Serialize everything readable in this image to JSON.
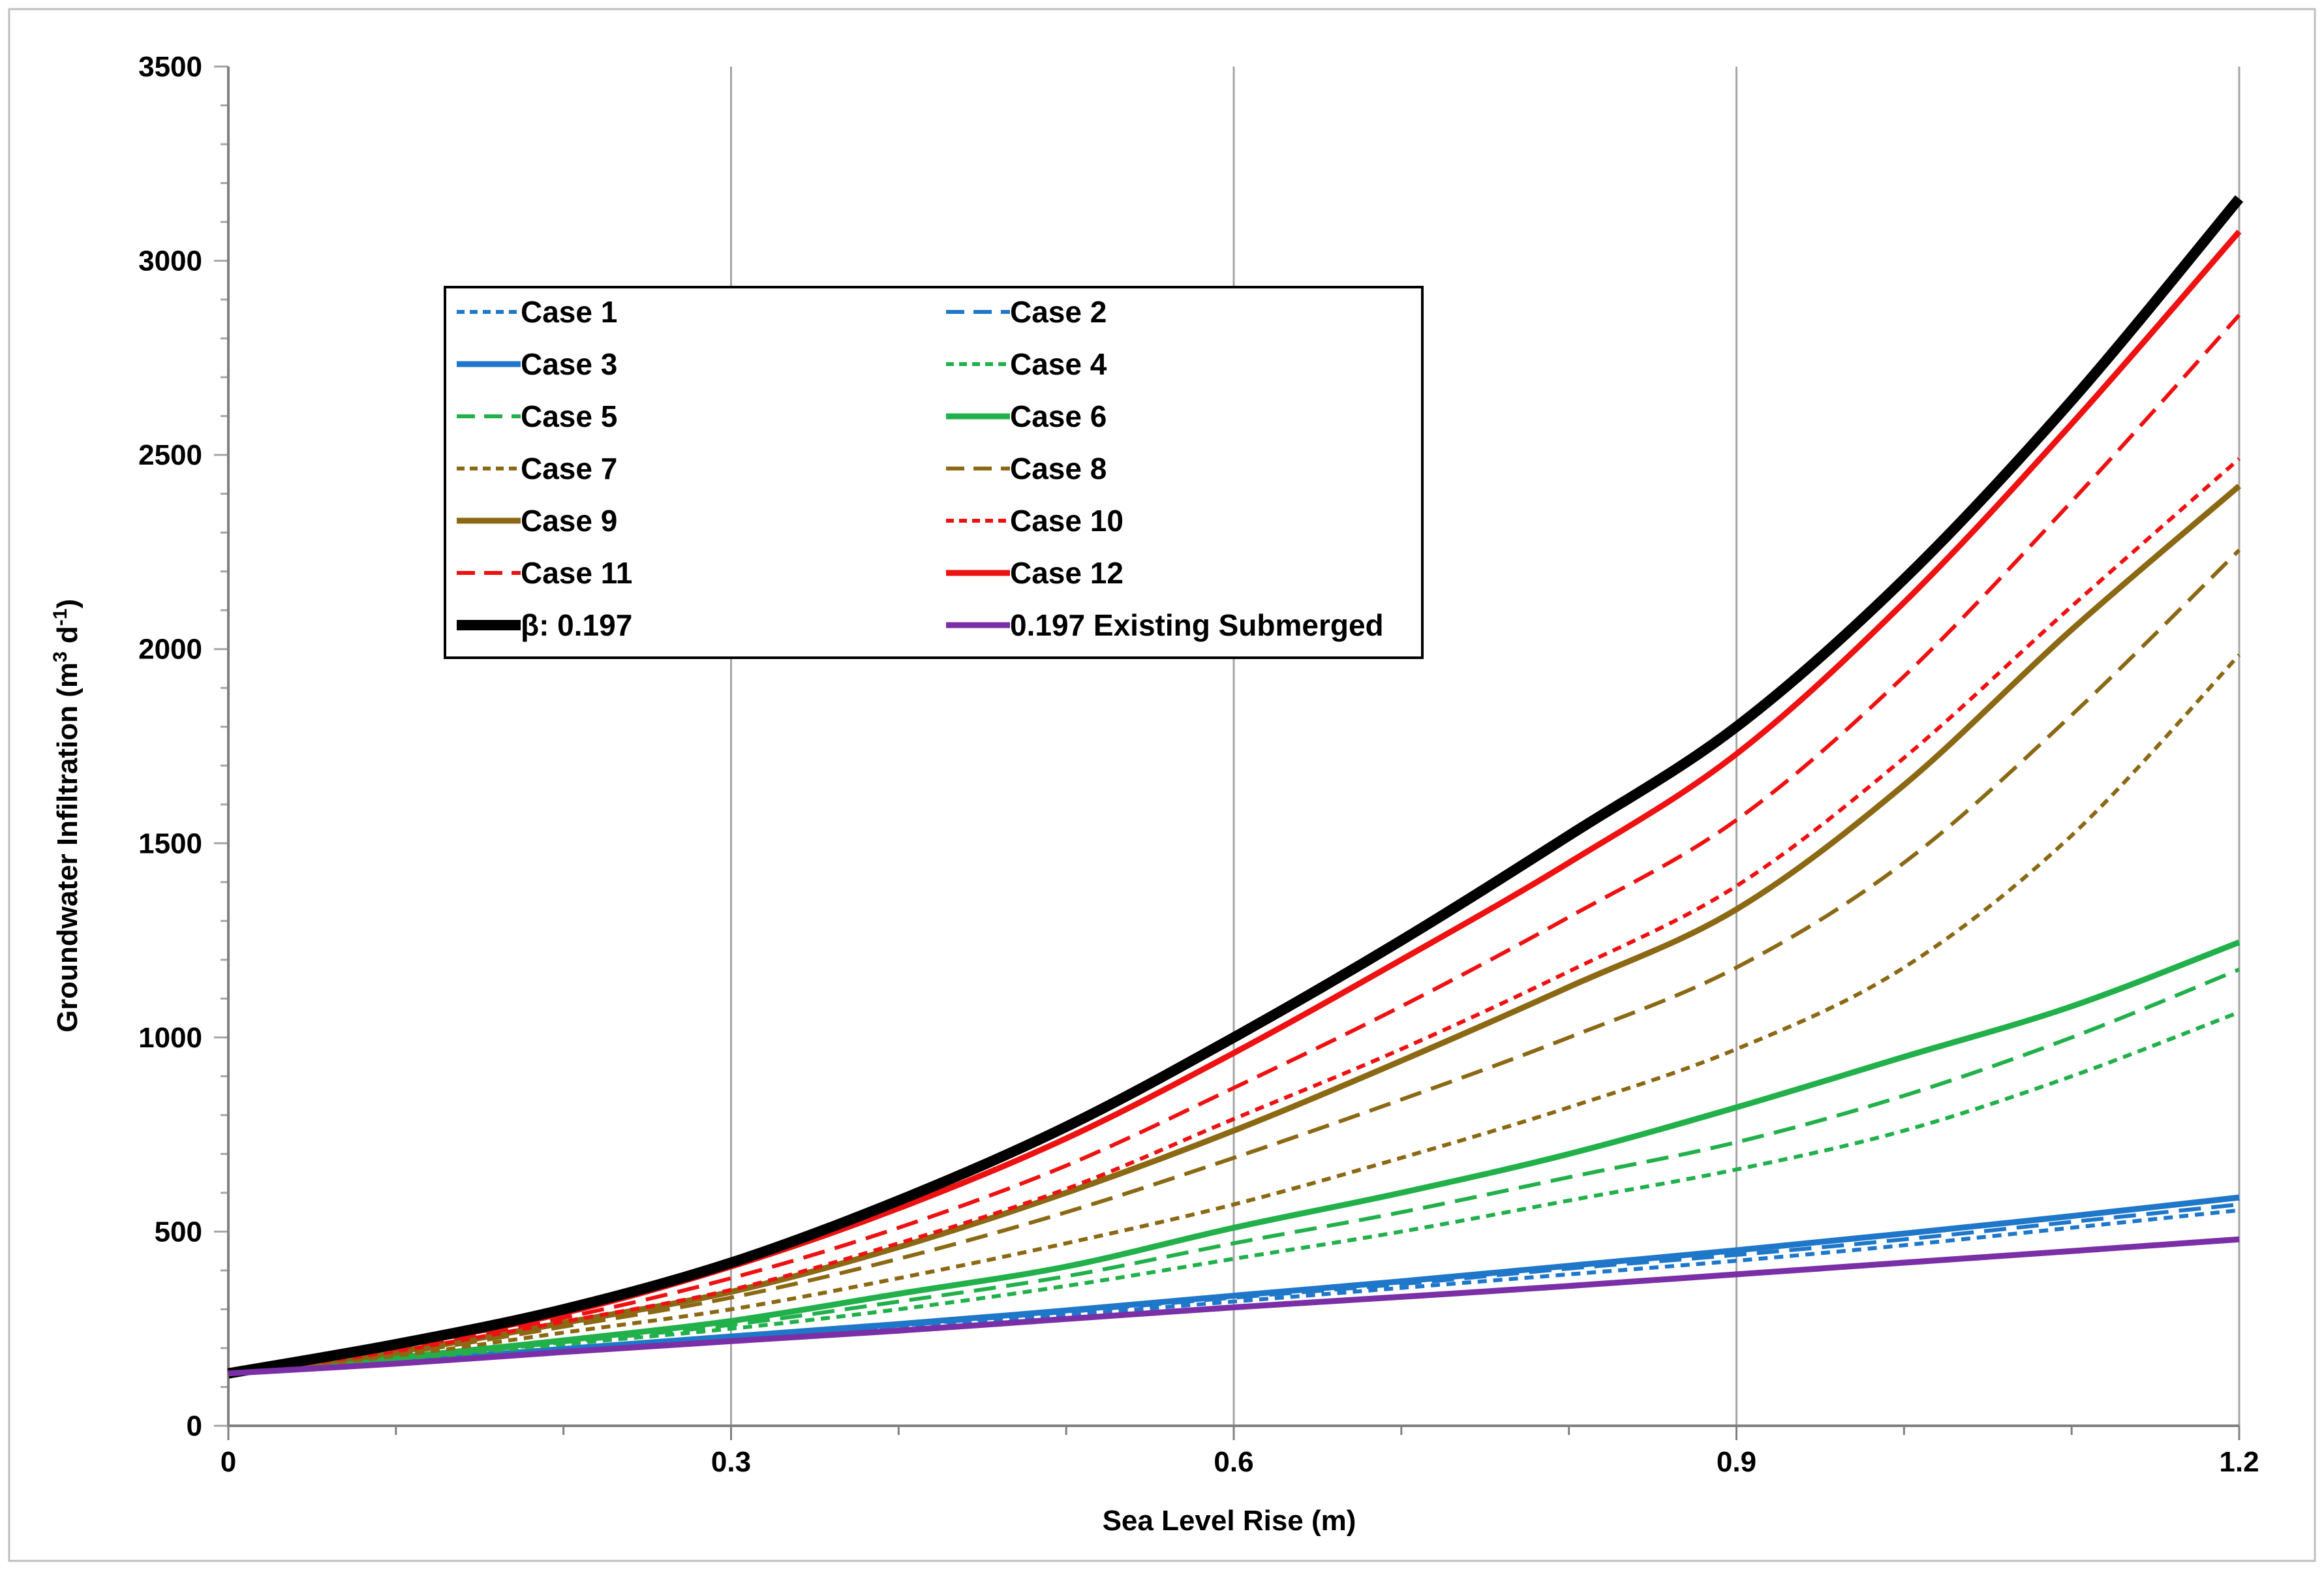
{
  "chart_data": {
    "type": "line",
    "title": "",
    "xlabel": "Sea Level Rise (m)",
    "ylabel_main": "Groundwater Infiltration (m",
    "ylabel_sup1": "3",
    "ylabel_mid": " d",
    "ylabel_sup2": "-1",
    "ylabel_end": ")",
    "xlim": [
      0,
      1.2
    ],
    "ylim": [
      0,
      3500
    ],
    "xticks": [
      0,
      0.3,
      0.6,
      0.9,
      1.2
    ],
    "xtick_labels": [
      "0",
      "0.3",
      "0.6",
      "0.9",
      "1.2"
    ],
    "yticks": [
      0,
      500,
      1000,
      1500,
      2000,
      2500,
      3000,
      3500
    ],
    "ytick_labels": [
      "0",
      "500",
      "1000",
      "1500",
      "2000",
      "2500",
      "3000",
      "3500"
    ],
    "x": [
      0,
      0.1,
      0.2,
      0.3,
      0.4,
      0.5,
      0.6,
      0.7,
      0.8,
      0.9,
      1.0,
      1.1,
      1.2
    ],
    "series": [
      {
        "name": "Case 1",
        "color": "#1f77c9",
        "dash": "short",
        "width": "thin",
        "values": [
          135,
          160,
          190,
          220,
          250,
          285,
          320,
          355,
          390,
          425,
          465,
          510,
          555
        ]
      },
      {
        "name": "Case 2",
        "color": "#1f77c9",
        "dash": "long",
        "width": "thin",
        "values": [
          135,
          162,
          195,
          225,
          258,
          293,
          330,
          365,
          405,
          440,
          480,
          525,
          570
        ]
      },
      {
        "name": "Case 3",
        "color": "#1f77c9",
        "dash": "solid",
        "width": "thick",
        "values": [
          135,
          165,
          198,
          230,
          262,
          297,
          335,
          372,
          412,
          452,
          495,
          540,
          588
        ]
      },
      {
        "name": "Case 4",
        "color": "#22b04b",
        "dash": "short",
        "width": "thin",
        "values": [
          135,
          170,
          210,
          250,
          300,
          360,
          430,
          500,
          580,
          660,
          760,
          900,
          1065
        ]
      },
      {
        "name": "Case 5",
        "color": "#22b04b",
        "dash": "long",
        "width": "thin",
        "values": [
          135,
          172,
          215,
          260,
          320,
          385,
          470,
          550,
          640,
          730,
          850,
          1000,
          1175
        ]
      },
      {
        "name": "Case 6",
        "color": "#22b04b",
        "dash": "solid",
        "width": "thick",
        "values": [
          135,
          175,
          220,
          270,
          340,
          410,
          510,
          600,
          700,
          820,
          950,
          1080,
          1245
        ]
      },
      {
        "name": "Case 7",
        "color": "#8b6914",
        "dash": "short",
        "width": "thin",
        "values": [
          135,
          180,
          240,
          300,
          380,
          470,
          570,
          690,
          820,
          970,
          1180,
          1520,
          1985
        ]
      },
      {
        "name": "Case 8",
        "color": "#8b6914",
        "dash": "long",
        "width": "thin",
        "values": [
          135,
          185,
          255,
          330,
          430,
          550,
          690,
          840,
          1000,
          1180,
          1450,
          1830,
          2255
        ]
      },
      {
        "name": "Case 9",
        "color": "#8b6914",
        "dash": "solid",
        "width": "thick",
        "values": [
          135,
          190,
          265,
          345,
          460,
          600,
          760,
          940,
          1130,
          1330,
          1650,
          2050,
          2420
        ]
      },
      {
        "name": "Case 10",
        "color": "#ee1111",
        "dash": "short",
        "width": "thin",
        "values": [
          135,
          192,
          268,
          350,
          470,
          610,
          790,
          970,
          1170,
          1390,
          1720,
          2110,
          2490
        ]
      },
      {
        "name": "Case 11",
        "color": "#ee1111",
        "dash": "long",
        "width": "thin",
        "values": [
          135,
          198,
          278,
          380,
          510,
          670,
          870,
          1080,
          1310,
          1560,
          1930,
          2380,
          2860
        ]
      },
      {
        "name": "Case 12",
        "color": "#ee1111",
        "dash": "solid",
        "width": "thick",
        "values": [
          135,
          205,
          290,
          410,
          560,
          740,
          960,
          1200,
          1450,
          1730,
          2120,
          2580,
          3075
        ]
      },
      {
        "name": "β: 0.197",
        "color": "#000000",
        "dash": "solid",
        "width": "extra",
        "values": [
          135,
          210,
          300,
          420,
          580,
          770,
          1000,
          1250,
          1520,
          1800,
          2180,
          2640,
          3160
        ]
      },
      {
        "name": "0.197 Existing Submerged",
        "color": "#7b2fa6",
        "dash": "solid",
        "width": "thick",
        "values": [
          135,
          160,
          190,
          218,
          245,
          275,
          305,
          332,
          360,
          390,
          420,
          450,
          480
        ]
      }
    ]
  }
}
